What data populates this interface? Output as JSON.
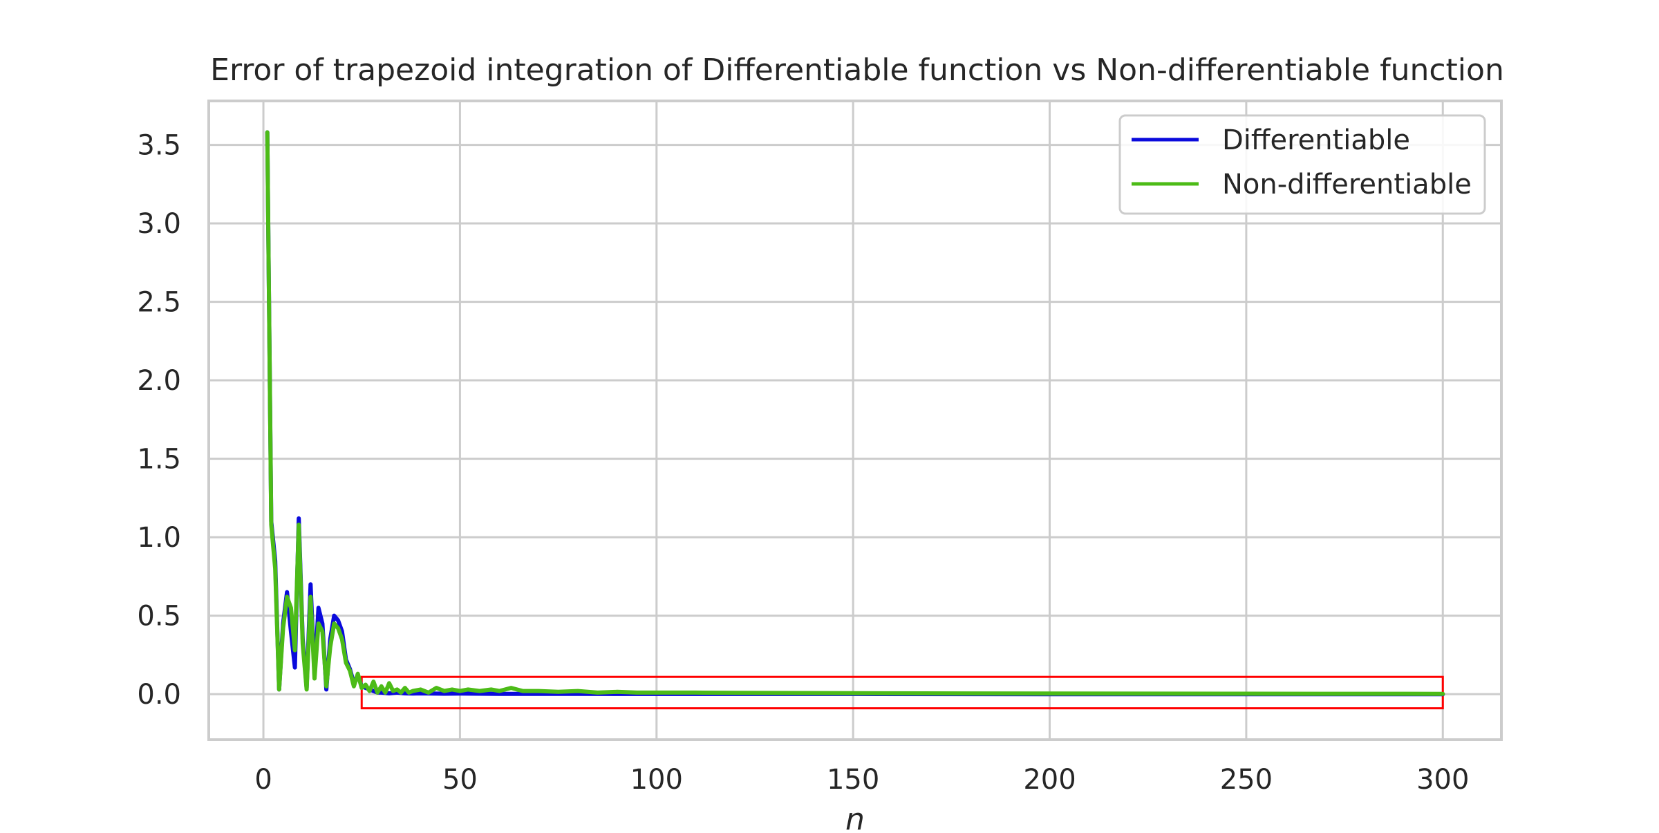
{
  "chart_data": {
    "type": "line",
    "title": "Error of trapezoid integration of Differentiable function vs Non-differentiable function",
    "xlabel": "n",
    "ylabel": "",
    "xlim": [
      -13.9,
      314.9
    ],
    "ylim": [
      -0.29,
      3.78
    ],
    "xticks": [
      0,
      50,
      100,
      150,
      200,
      250,
      300
    ],
    "yticks": [
      0.0,
      0.5,
      1.0,
      1.5,
      2.0,
      2.5,
      3.0,
      3.5
    ],
    "x_tick_labels": [
      "0",
      "50",
      "100",
      "150",
      "200",
      "250",
      "300"
    ],
    "y_tick_labels": [
      "0.0",
      "0.5",
      "1.0",
      "1.5",
      "2.0",
      "2.5",
      "3.0",
      "3.5"
    ],
    "grid": true,
    "legend_position": "top-right",
    "highlight_box": {
      "x": [
        25,
        300
      ],
      "y": [
        -0.09,
        0.11
      ],
      "color": "#ff0000"
    },
    "series": [
      {
        "name": "Differentiable",
        "color": "#0a0adc",
        "x": [
          1,
          2,
          3,
          4,
          5,
          6,
          7,
          8,
          9,
          10,
          11,
          12,
          13,
          14,
          15,
          16,
          17,
          18,
          19,
          20,
          21,
          22,
          23,
          24,
          25,
          26,
          27,
          28,
          29,
          30,
          32,
          34,
          36,
          38,
          40,
          43,
          46,
          50,
          55,
          60,
          65,
          70,
          80,
          90,
          100,
          120,
          150,
          200,
          250,
          300
        ],
        "y": [
          3.58,
          1.1,
          0.85,
          0.03,
          0.45,
          0.65,
          0.4,
          0.17,
          1.12,
          0.35,
          0.04,
          0.7,
          0.12,
          0.55,
          0.45,
          0.03,
          0.35,
          0.5,
          0.47,
          0.4,
          0.22,
          0.16,
          0.07,
          0.12,
          0.05,
          0.04,
          0.03,
          0.02,
          0.01,
          0.01,
          0.005,
          0.01,
          0.005,
          0.004,
          0.005,
          0.004,
          0.003,
          0.004,
          0.003,
          0.002,
          0.002,
          0.002,
          0.002,
          0.001,
          0.001,
          0.001,
          0.001,
          0.0,
          0.0,
          0.0
        ]
      },
      {
        "name": "Non-differentiable",
        "color": "#4cbb17",
        "x": [
          1,
          2,
          3,
          4,
          5,
          6,
          7,
          8,
          9,
          10,
          11,
          12,
          13,
          14,
          15,
          16,
          17,
          18,
          19,
          20,
          21,
          22,
          23,
          24,
          25,
          26,
          27,
          28,
          29,
          30,
          31,
          32,
          33,
          34,
          35,
          36,
          37,
          38,
          40,
          42,
          44,
          46,
          48,
          50,
          52,
          55,
          58,
          60,
          63,
          66,
          70,
          75,
          80,
          85,
          90,
          95,
          100,
          110,
          120,
          150,
          200,
          250,
          300
        ],
        "y": [
          3.58,
          1.08,
          0.8,
          0.03,
          0.42,
          0.62,
          0.55,
          0.28,
          1.08,
          0.32,
          0.03,
          0.62,
          0.1,
          0.45,
          0.4,
          0.05,
          0.3,
          0.45,
          0.42,
          0.35,
          0.2,
          0.15,
          0.05,
          0.13,
          0.04,
          0.06,
          0.02,
          0.08,
          0.01,
          0.05,
          0.01,
          0.07,
          0.02,
          0.03,
          0.01,
          0.04,
          0.01,
          0.02,
          0.03,
          0.01,
          0.04,
          0.02,
          0.03,
          0.02,
          0.03,
          0.02,
          0.03,
          0.02,
          0.04,
          0.02,
          0.02,
          0.015,
          0.02,
          0.01,
          0.015,
          0.01,
          0.01,
          0.01,
          0.008,
          0.006,
          0.004,
          0.003,
          0.002
        ]
      }
    ]
  }
}
